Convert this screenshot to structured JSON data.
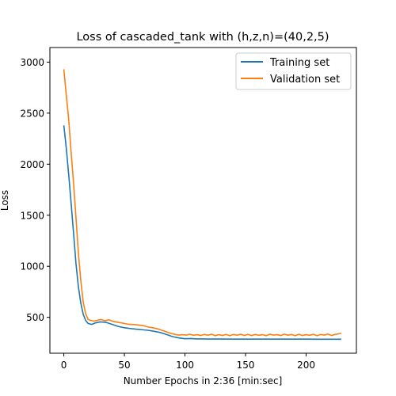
{
  "chart_data": {
    "type": "line",
    "title": "Loss of cascaded_tank with (h,z,n)=(40,2,5)",
    "xlabel": "Number Epochs in  2:36 [min:sec]",
    "ylabel": "Loss",
    "xlim": [
      -11.5,
      241.5
    ],
    "ylim": [
      148,
      3143
    ],
    "xticks": [
      0,
      50,
      100,
      150,
      200
    ],
    "yticks": [
      500,
      1000,
      1500,
      2000,
      2500,
      3000
    ],
    "grid": false,
    "legend_position": "top-right",
    "series": [
      {
        "name": "Training set",
        "color": "#1f77b4",
        "points": [
          [
            0,
            2380
          ],
          [
            2,
            2160
          ],
          [
            4,
            1900
          ],
          [
            6,
            1620
          ],
          [
            8,
            1330
          ],
          [
            10,
            1030
          ],
          [
            12,
            800
          ],
          [
            14,
            640
          ],
          [
            16,
            530
          ],
          [
            18,
            470
          ],
          [
            20,
            440
          ],
          [
            23,
            430
          ],
          [
            26,
            445
          ],
          [
            30,
            455
          ],
          [
            35,
            450
          ],
          [
            40,
            430
          ],
          [
            45,
            410
          ],
          [
            50,
            398
          ],
          [
            55,
            390
          ],
          [
            60,
            383
          ],
          [
            65,
            378
          ],
          [
            70,
            372
          ],
          [
            75,
            362
          ],
          [
            80,
            350
          ],
          [
            85,
            330
          ],
          [
            90,
            310
          ],
          [
            95,
            298
          ],
          [
            100,
            290
          ],
          [
            105,
            292
          ],
          [
            110,
            288
          ],
          [
            115,
            288
          ],
          [
            120,
            287
          ],
          [
            130,
            287
          ],
          [
            140,
            286
          ],
          [
            150,
            286
          ],
          [
            160,
            286
          ],
          [
            170,
            286
          ],
          [
            180,
            286
          ],
          [
            190,
            286
          ],
          [
            200,
            286
          ],
          [
            210,
            285
          ],
          [
            220,
            285
          ],
          [
            229,
            285
          ]
        ]
      },
      {
        "name": "Validation set",
        "color": "#ff7f0e",
        "points": [
          [
            0,
            2930
          ],
          [
            2,
            2680
          ],
          [
            4,
            2440
          ],
          [
            6,
            2120
          ],
          [
            8,
            1820
          ],
          [
            10,
            1480
          ],
          [
            12,
            1130
          ],
          [
            14,
            860
          ],
          [
            16,
            650
          ],
          [
            18,
            535
          ],
          [
            20,
            480
          ],
          [
            22,
            470
          ],
          [
            25,
            462
          ],
          [
            28,
            472
          ],
          [
            31,
            478
          ],
          [
            34,
            466
          ],
          [
            37,
            476
          ],
          [
            40,
            462
          ],
          [
            43,
            455
          ],
          [
            46,
            448
          ],
          [
            50,
            440
          ],
          [
            53,
            432
          ],
          [
            56,
            430
          ],
          [
            59,
            428
          ],
          [
            62,
            424
          ],
          [
            65,
            420
          ],
          [
            68,
            410
          ],
          [
            71,
            402
          ],
          [
            74,
            396
          ],
          [
            77,
            388
          ],
          [
            80,
            376
          ],
          [
            83,
            365
          ],
          [
            86,
            352
          ],
          [
            89,
            340
          ],
          [
            92,
            332
          ],
          [
            95,
            326
          ],
          [
            98,
            330
          ],
          [
            101,
            326
          ],
          [
            104,
            334
          ],
          [
            107,
            324
          ],
          [
            110,
            330
          ],
          [
            113,
            322
          ],
          [
            116,
            332
          ],
          [
            119,
            325
          ],
          [
            122,
            334
          ],
          [
            125,
            320
          ],
          [
            128,
            330
          ],
          [
            131,
            322
          ],
          [
            134,
            332
          ],
          [
            137,
            320
          ],
          [
            140,
            332
          ],
          [
            143,
            325
          ],
          [
            146,
            334
          ],
          [
            149,
            322
          ],
          [
            152,
            333
          ],
          [
            155,
            321
          ],
          [
            158,
            332
          ],
          [
            161,
            324
          ],
          [
            164,
            330
          ],
          [
            167,
            320
          ],
          [
            170,
            334
          ],
          [
            173,
            326
          ],
          [
            176,
            330
          ],
          [
            179,
            322
          ],
          [
            182,
            335
          ],
          [
            185,
            325
          ],
          [
            188,
            332
          ],
          [
            191,
            320
          ],
          [
            194,
            334
          ],
          [
            197,
            322
          ],
          [
            200,
            330
          ],
          [
            203,
            324
          ],
          [
            206,
            334
          ],
          [
            209,
            320
          ],
          [
            212,
            332
          ],
          [
            215,
            326
          ],
          [
            218,
            336
          ],
          [
            221,
            322
          ],
          [
            224,
            332
          ],
          [
            227,
            338
          ],
          [
            229,
            345
          ]
        ]
      }
    ]
  }
}
